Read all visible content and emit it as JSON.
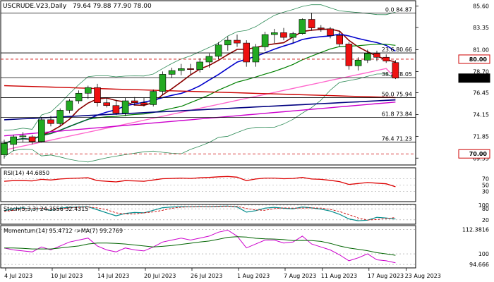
{
  "header": {
    "symbol": "USCRUDE.V23,Daily",
    "ohlc": "79.64 79.88 77.90 78.00"
  },
  "chart_data": {
    "type": "candlestick",
    "x_ticks": [
      "4 Jul 2023",
      "10 Jul 2023",
      "14 Jul 2023",
      "20 Jul 2023",
      "26 Jul 2023",
      "1 Aug 2023",
      "7 Aug 2023",
      "11 Aug 2023",
      "17 Aug 2023",
      "23 Aug 2023"
    ],
    "price_axis": {
      "ylim": [
        68.9,
        86.1
      ],
      "ticks": [
        "85.60",
        "83.35",
        "81.00",
        "78.70",
        "76.45",
        "74.15",
        "71.85",
        "69.55"
      ],
      "tick_values": [
        85.6,
        83.35,
        81.0,
        78.7,
        76.45,
        74.15,
        71.85,
        69.55
      ],
      "highlight_labels": [
        {
          "text": "80.00",
          "value": 80.0,
          "style": "red-box"
        },
        {
          "text": "78.00",
          "value": 78.0,
          "style": "black-box"
        },
        {
          "text": "70.00",
          "value": 70.0,
          "style": "red-box"
        }
      ]
    },
    "fib_levels": [
      {
        "label": "0.0 84.87",
        "value": 84.87
      },
      {
        "label": "23.6 80.66",
        "value": 80.66
      },
      {
        "label": "38.2 78.05",
        "value": 78.05
      },
      {
        "label": "50.0 75.94",
        "value": 75.94
      },
      {
        "label": "61.8 73.84",
        "value": 73.84
      },
      {
        "label": "76.4 71.23",
        "value": 71.23
      }
    ],
    "dashed_levels": [
      80.0,
      70.0
    ],
    "candles": [
      {
        "o": 69.9,
        "h": 71.5,
        "l": 69.5,
        "c": 71.1
      },
      {
        "o": 71.0,
        "h": 72.0,
        "l": 70.3,
        "c": 71.8
      },
      {
        "o": 71.8,
        "h": 72.3,
        "l": 71.2,
        "c": 71.9
      },
      {
        "o": 71.8,
        "h": 72.0,
        "l": 71.0,
        "c": 71.3
      },
      {
        "o": 71.3,
        "h": 73.9,
        "l": 71.2,
        "c": 73.6
      },
      {
        "o": 73.6,
        "h": 74.0,
        "l": 72.9,
        "c": 73.2
      },
      {
        "o": 73.2,
        "h": 74.8,
        "l": 73.0,
        "c": 74.6
      },
      {
        "o": 74.6,
        "h": 75.8,
        "l": 74.3,
        "c": 75.6
      },
      {
        "o": 75.6,
        "h": 76.7,
        "l": 75.3,
        "c": 76.4
      },
      {
        "o": 76.4,
        "h": 77.2,
        "l": 75.8,
        "c": 77.0
      },
      {
        "o": 77.0,
        "h": 77.4,
        "l": 75.0,
        "c": 75.4
      },
      {
        "o": 75.4,
        "h": 75.9,
        "l": 74.9,
        "c": 75.1
      },
      {
        "o": 75.1,
        "h": 75.7,
        "l": 74.1,
        "c": 74.3
      },
      {
        "o": 74.3,
        "h": 75.9,
        "l": 74.0,
        "c": 75.6
      },
      {
        "o": 75.6,
        "h": 76.0,
        "l": 75.1,
        "c": 75.4
      },
      {
        "o": 75.4,
        "h": 75.9,
        "l": 75.0,
        "c": 75.2
      },
      {
        "o": 75.2,
        "h": 76.8,
        "l": 75.0,
        "c": 76.6
      },
      {
        "o": 76.6,
        "h": 78.7,
        "l": 76.2,
        "c": 78.4
      },
      {
        "o": 78.4,
        "h": 79.1,
        "l": 78.0,
        "c": 78.8
      },
      {
        "o": 78.8,
        "h": 79.5,
        "l": 78.3,
        "c": 79.0
      },
      {
        "o": 79.0,
        "h": 79.5,
        "l": 78.4,
        "c": 78.9
      },
      {
        "o": 78.9,
        "h": 80.1,
        "l": 78.6,
        "c": 79.7
      },
      {
        "o": 79.7,
        "h": 80.6,
        "l": 79.1,
        "c": 80.3
      },
      {
        "o": 80.3,
        "h": 81.8,
        "l": 80.0,
        "c": 81.5
      },
      {
        "o": 81.5,
        "h": 82.4,
        "l": 80.9,
        "c": 82.0
      },
      {
        "o": 82.0,
        "h": 82.6,
        "l": 81.3,
        "c": 81.7
      },
      {
        "o": 81.7,
        "h": 82.0,
        "l": 79.2,
        "c": 79.7
      },
      {
        "o": 79.7,
        "h": 81.6,
        "l": 79.2,
        "c": 81.3
      },
      {
        "o": 81.3,
        "h": 82.9,
        "l": 80.9,
        "c": 82.6
      },
      {
        "o": 82.6,
        "h": 83.2,
        "l": 81.7,
        "c": 82.8
      },
      {
        "o": 82.8,
        "h": 83.3,
        "l": 82.0,
        "c": 82.3
      },
      {
        "o": 82.3,
        "h": 82.9,
        "l": 81.7,
        "c": 82.7
      },
      {
        "o": 82.7,
        "h": 84.3,
        "l": 82.6,
        "c": 84.2
      },
      {
        "o": 84.2,
        "h": 84.9,
        "l": 83.0,
        "c": 83.3
      },
      {
        "o": 83.3,
        "h": 83.6,
        "l": 82.9,
        "c": 83.2
      },
      {
        "o": 83.2,
        "h": 83.4,
        "l": 82.2,
        "c": 82.5
      },
      {
        "o": 82.5,
        "h": 83.0,
        "l": 81.3,
        "c": 81.6
      },
      {
        "o": 81.6,
        "h": 81.8,
        "l": 78.9,
        "c": 79.3
      },
      {
        "o": 79.3,
        "h": 80.2,
        "l": 78.8,
        "c": 79.9
      },
      {
        "o": 79.9,
        "h": 81.0,
        "l": 79.6,
        "c": 80.6
      },
      {
        "o": 80.6,
        "h": 80.9,
        "l": 79.8,
        "c": 80.2
      },
      {
        "o": 80.2,
        "h": 80.5,
        "l": 79.6,
        "c": 79.8
      },
      {
        "o": 79.64,
        "h": 79.88,
        "l": 77.9,
        "c": 78.0
      }
    ],
    "rsi": {
      "title": "RSI(14) 44.6850",
      "ylim": [
        0,
        100
      ],
      "ticks": [
        "70",
        "50",
        "30"
      ],
      "tick_values": [
        70,
        50,
        30
      ],
      "values": [
        62,
        64,
        64,
        63,
        68,
        66,
        69,
        71,
        72,
        73,
        64,
        62,
        60,
        64,
        63,
        62,
        66,
        70,
        71,
        72,
        71,
        73,
        74,
        76,
        77,
        75,
        64,
        69,
        72,
        72,
        70,
        71,
        74,
        69,
        68,
        65,
        61,
        52,
        55,
        58,
        56,
        54,
        44.685
      ]
    },
    "stoch": {
      "title": "Stoch(5,3,3) 24.3556 32.4315",
      "ylim": [
        0,
        100
      ],
      "ticks": [
        "100",
        "80",
        "20"
      ],
      "tick_values": [
        100,
        80,
        20
      ],
      "k": [
        70,
        80,
        85,
        78,
        82,
        72,
        84,
        88,
        90,
        91,
        75,
        58,
        42,
        55,
        60,
        58,
        72,
        86,
        90,
        92,
        91,
        93,
        92,
        94,
        95,
        90,
        62,
        70,
        84,
        88,
        83,
        80,
        90,
        85,
        78,
        68,
        50,
        25,
        15,
        18,
        34,
        30,
        24.3556
      ],
      "d": [
        65,
        72,
        80,
        81,
        82,
        78,
        80,
        85,
        88,
        90,
        85,
        75,
        58,
        52,
        52,
        58,
        63,
        72,
        83,
        89,
        91,
        92,
        92,
        93,
        94,
        93,
        82,
        74,
        72,
        81,
        85,
        84,
        84,
        85,
        84,
        77,
        65,
        48,
        30,
        19,
        22,
        27,
        32.4315
      ]
    },
    "momentum": {
      "title": "Momentum(14) 95.4712 ->MA(7) 99.2769",
      "ylim": [
        93.6,
        113.6
      ],
      "ticks": [
        "112.3816",
        "100",
        "94.666"
      ],
      "tick_values": [
        112.3816,
        100,
        94.666
      ],
      "values": [
        103,
        102,
        101.5,
        101,
        103.5,
        102,
        104,
        106,
        107,
        108,
        104,
        102,
        101,
        103,
        102,
        101.5,
        103.5,
        106,
        107,
        108,
        107,
        108,
        109,
        111,
        112,
        109,
        103,
        105,
        107,
        107,
        105.5,
        106,
        109,
        105,
        103.5,
        102,
        99.5,
        96.5,
        98,
        100,
        97,
        96.5,
        95.4712
      ],
      "ma": [
        103,
        103,
        102.8,
        102.5,
        102.5,
        102.5,
        103,
        103.5,
        104,
        105,
        105.5,
        105.5,
        105.3,
        105,
        104.5,
        104,
        103.5,
        103.8,
        104.2,
        104.8,
        105.4,
        106,
        106.5,
        107.4,
        108.4,
        108.7,
        108.5,
        107.9,
        107.6,
        107.5,
        107.2,
        106.7,
        106.8,
        106.7,
        106.3,
        105.3,
        104,
        103,
        102.3,
        101.6,
        100.6,
        100,
        99.2769
      ]
    }
  }
}
